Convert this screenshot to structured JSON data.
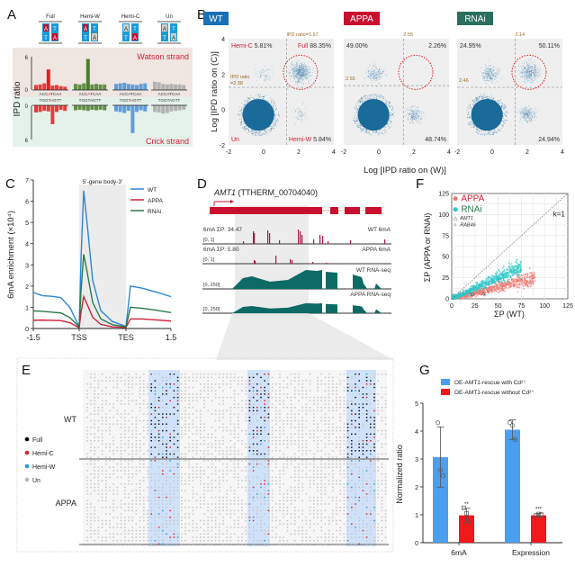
{
  "panels": {
    "A": "A",
    "B": "B",
    "C": "C",
    "D": "D",
    "E": "E",
    "F": "F",
    "G": "G"
  },
  "chart_data": [
    {
      "id": "A",
      "type": "bar",
      "title": "",
      "ylabel": "IPD ratio",
      "ylim_top": [
        0,
        6
      ],
      "ylim_bottom": [
        0,
        6
      ],
      "strand_labels": {
        "top": "Watson strand",
        "bottom": "Crick strand"
      },
      "categories": [
        "Full",
        "Hemi-W",
        "Hemi-C",
        "Un"
      ],
      "seq_top": "ACCATCAA",
      "seq_bottom": "TGGTAGTT",
      "series": [
        {
          "name": "Full",
          "color": "#e02020",
          "watson": [
            0.9,
            1.0,
            1.2,
            3.7,
            0.8,
            0.9,
            0.7,
            0.6
          ],
          "crick": [
            1.3,
            1.2,
            1.0,
            1.1,
            3.4,
            1.2,
            0.8,
            1.0
          ],
          "mark_top": 3,
          "mark_bottom": 4,
          "pair_top": [
            "A",
            "T"
          ],
          "pair_bottom": [
            "T",
            "A"
          ],
          "methyl": [
            true,
            true
          ]
        },
        {
          "name": "Hemi-W",
          "color": "#4a7f2a",
          "watson": [
            1.1,
            1.0,
            1.2,
            5.6,
            1.0,
            1.1,
            1.0,
            1.0
          ],
          "crick": [
            0.9,
            0.8,
            0.9,
            1.0,
            0.8,
            0.9,
            0.8,
            0.9
          ],
          "mark_top": 3,
          "mark_bottom": -1,
          "pair_top": [
            "A",
            "T"
          ],
          "pair_bottom": [
            "T",
            "A"
          ],
          "methyl": [
            true,
            false
          ]
        },
        {
          "name": "Hemi-C",
          "color": "#4a8ed6",
          "watson": [
            1.1,
            1.2,
            1.3,
            1.1,
            1.0,
            0.9,
            1.1,
            1.2
          ],
          "crick": [
            1.1,
            1.2,
            1.4,
            1.0,
            5.0,
            1.2,
            0.9,
            1.1
          ],
          "mark_top": -1,
          "mark_bottom": 4,
          "pair_top": [
            "A",
            "T"
          ],
          "pair_bottom": [
            "T",
            "A"
          ],
          "methyl": [
            false,
            true
          ]
        },
        {
          "name": "Un",
          "color": "#a8a8a8",
          "watson": [
            1.5,
            1.4,
            1.1,
            1.0,
            1.1,
            1.0,
            1.0,
            0.9
          ],
          "crick": [
            1.2,
            1.3,
            1.5,
            1.4,
            1.1,
            1.0,
            0.9,
            0.8
          ],
          "mark_top": -1,
          "mark_bottom": -1,
          "pair_top": [
            "A",
            "T"
          ],
          "pair_bottom": [
            "T",
            "A"
          ],
          "methyl": [
            false,
            false
          ]
        }
      ]
    },
    {
      "id": "B",
      "type": "scatter",
      "xlabel": "Log2 [IPD ratio on (W)]",
      "ylabel": "Log2 [IPD ratio on (C)]",
      "xlim": [
        -2,
        4
      ],
      "ylim": [
        -2,
        4
      ],
      "xticks": [
        "-2",
        "0",
        "2",
        "4"
      ],
      "yticks": [
        "-2",
        "0",
        "2",
        "4"
      ],
      "plots": [
        {
          "label": "WT",
          "label_color": "#1a6fb5",
          "x_threshold": 1.57,
          "y_threshold": 2.38,
          "x_threshold_label": "IPD ratio=1.57",
          "y_threshold_label": "IPD ratio\n=2.38",
          "quadrants": {
            "top_left": "Hemi-C 5.81%",
            "top_right": "Full 88.35%",
            "bottom_left": "Un",
            "bottom_right": "Hemi-W 5.84%"
          },
          "quadrant_names": {
            "top_left": "Hemi-C",
            "top_right": "Full",
            "bottom_left": "Un",
            "bottom_right": "Hemi-W"
          },
          "quadrant_values": {
            "top_left": "5.81%",
            "top_right": "88.35%",
            "bottom_right": "5.84%"
          },
          "clusters": [
            {
              "x": -0.3,
              "y": -0.3,
              "r": 0.95,
              "dense": true
            },
            {
              "x": 2.1,
              "y": 2.1,
              "r": 0.6,
              "n": 600
            },
            {
              "x": 0.0,
              "y": 2.0,
              "r": 0.5,
              "n": 60
            },
            {
              "x": 2.1,
              "y": -0.3,
              "r": 0.5,
              "n": 60
            }
          ]
        },
        {
          "label": "APPA",
          "label_color": "#c8102e",
          "x_threshold": 2.55,
          "y_threshold": 2.55,
          "x_threshold_label": "2.55",
          "y_threshold_label": "2.55",
          "quadrant_names": {
            "top_left": "",
            "top_right": "",
            "bottom_left": "",
            "bottom_right": ""
          },
          "quadrant_values": {
            "top_left": "49.00%",
            "top_right": "2.26%",
            "bottom_right": "48.74%"
          },
          "clusters": [
            {
              "x": -0.3,
              "y": -0.3,
              "r": 0.95,
              "dense": true
            },
            {
              "x": -0.2,
              "y": 2.0,
              "r": 0.5,
              "n": 200
            },
            {
              "x": 2.0,
              "y": -0.3,
              "r": 0.5,
              "n": 200
            }
          ]
        },
        {
          "label": "RNAi",
          "label_color": "#2a6e5e",
          "x_threshold": 2.14,
          "y_threshold": 2.46,
          "x_threshold_label": "2.14",
          "y_threshold_label": "2.46",
          "quadrant_names": {
            "top_left": "",
            "top_right": "",
            "bottom_left": "",
            "bottom_right": ""
          },
          "quadrant_values": {
            "top_left": "24.95%",
            "top_right": "50.11%",
            "bottom_right": "24.94%"
          },
          "clusters": [
            {
              "x": -0.3,
              "y": -0.3,
              "r": 0.95,
              "dense": true
            },
            {
              "x": -0.1,
              "y": 2.0,
              "r": 0.5,
              "n": 250
            },
            {
              "x": 2.1,
              "y": 2.1,
              "r": 0.6,
              "n": 400
            },
            {
              "x": 2.0,
              "y": -0.3,
              "r": 0.5,
              "n": 250
            }
          ]
        }
      ]
    },
    {
      "id": "C",
      "type": "line",
      "ylabel": "6mA enrichment (×10⁴)",
      "ylim": [
        0,
        7
      ],
      "yticks": [
        "0",
        "1",
        "2",
        "3",
        "4",
        "5",
        "6",
        "7"
      ],
      "xticks": [
        "-1.5",
        "TSS",
        "TES",
        "1.5"
      ],
      "shaded_label": "5'-gene body-3'",
      "series": [
        {
          "name": "WT",
          "color": "#2e86d0",
          "upstream": [
            1.7,
            1.55,
            1.5,
            1.45,
            1.0,
            0.1
          ],
          "peak": 6.5,
          "body_end": 0.1,
          "downstream": [
            2.0,
            1.9,
            1.7,
            1.5
          ]
        },
        {
          "name": "APPA",
          "color": "#d0203a",
          "upstream": [
            0.4,
            0.38,
            0.38,
            0.36,
            0.25,
            0.05
          ],
          "peak": 1.5,
          "body_end": 0.05,
          "downstream": [
            0.45,
            0.45,
            0.4,
            0.35
          ]
        },
        {
          "name": "RNAi",
          "color": "#2a7a4a",
          "upstream": [
            0.85,
            0.8,
            0.78,
            0.75,
            0.5,
            0.08
          ],
          "peak": 3.5,
          "body_end": 0.08,
          "downstream": [
            1.0,
            0.95,
            0.85,
            0.75
          ]
        }
      ]
    },
    {
      "id": "D",
      "type": "area",
      "gene_name": "AMT1",
      "gene_id": "(TTHERM_00704040)",
      "tracks": [
        {
          "left": "6mA ΣP: 34.47",
          "range": "[0, 1]",
          "right": "WT 6mA",
          "kind": "6mA",
          "color": "#a8164a"
        },
        {
          "left": "6mA ΣP: 5.80",
          "range": "[0, 1]",
          "right": "APPA 6mA",
          "kind": "6mA",
          "color": "#a8164a"
        },
        {
          "left": "",
          "range": "[0, 250]",
          "right": "WT RNA-seq",
          "kind": "rna",
          "color": "#0d6a64"
        },
        {
          "left": "",
          "range": "[0, 250]",
          "right": "APPA RNA-seq",
          "kind": "rna",
          "color": "#0d6a64"
        }
      ]
    },
    {
      "id": "E",
      "type": "table",
      "groups": [
        "WT",
        "APPA"
      ],
      "legend": [
        {
          "label": "Full",
          "color": "#000000"
        },
        {
          "label": "Hemi-C",
          "color": "#e02020"
        },
        {
          "label": "Hemi-W",
          "color": "#2a9ad0"
        },
        {
          "label": "Un",
          "color": "#b8b8b8"
        }
      ]
    },
    {
      "id": "F",
      "type": "scatter",
      "xlabel": "ΣP (WT)",
      "ylabel": "ΣP (APPA or RNAi)",
      "xlim": [
        0,
        125
      ],
      "ylim": [
        0,
        125
      ],
      "xticks": [
        "0",
        "25",
        "50",
        "75",
        "100",
        "125"
      ],
      "yticks": [
        "0",
        "25",
        "50",
        "75",
        "100",
        "125"
      ],
      "annotation": "k=1",
      "legend": [
        {
          "label": "APPA",
          "color": "#f07a72",
          "text_color": "#d0203a"
        },
        {
          "label": "RNAi",
          "color": "#2ec8c8",
          "text_color": "#2a7a4a"
        },
        {
          "label": "AMT1",
          "marker": "△"
        },
        {
          "label": "RAB46",
          "marker": "○"
        }
      ],
      "series": [
        {
          "name": "APPA",
          "slope": 0.28,
          "spread": 0.18,
          "xmax": 90
        },
        {
          "name": "RNAi",
          "slope": 0.5,
          "spread": 0.12,
          "xmax": 75
        }
      ],
      "highlights": [
        {
          "name": "AMT1",
          "x": 34,
          "y": 6
        },
        {
          "name": "RAB46",
          "x": 22,
          "y": 5
        }
      ]
    },
    {
      "id": "G",
      "type": "bar",
      "ylabel": "Normalized ratio",
      "ylim": [
        0,
        5
      ],
      "yticks": [
        "0",
        "1",
        "2",
        "3",
        "4",
        "5"
      ],
      "categories": [
        "6mA",
        "Expression"
      ],
      "series": [
        {
          "name": "OE-AMT1-rescue with Cd²⁺",
          "color": "#4a9ff0",
          "values": [
            3.07,
            4.05
          ],
          "err": [
            1.08,
            0.35
          ],
          "points": [
            [
              4.3,
              2.6,
              2.4
            ],
            [
              4.3,
              4.2,
              3.7
            ]
          ],
          "marker": "circle"
        },
        {
          "name": "OE-AMT1-rescue without Cd²⁺",
          "color": "#f01818",
          "values": [
            0.98,
            0.98
          ],
          "err": [
            0.25,
            0.07
          ],
          "points": [
            [
              1.25,
              1.05,
              0.75
            ],
            [
              0.97,
              1.03,
              1.01
            ]
          ],
          "marker": "square"
        }
      ],
      "significance": [
        "**",
        "***"
      ]
    }
  ]
}
